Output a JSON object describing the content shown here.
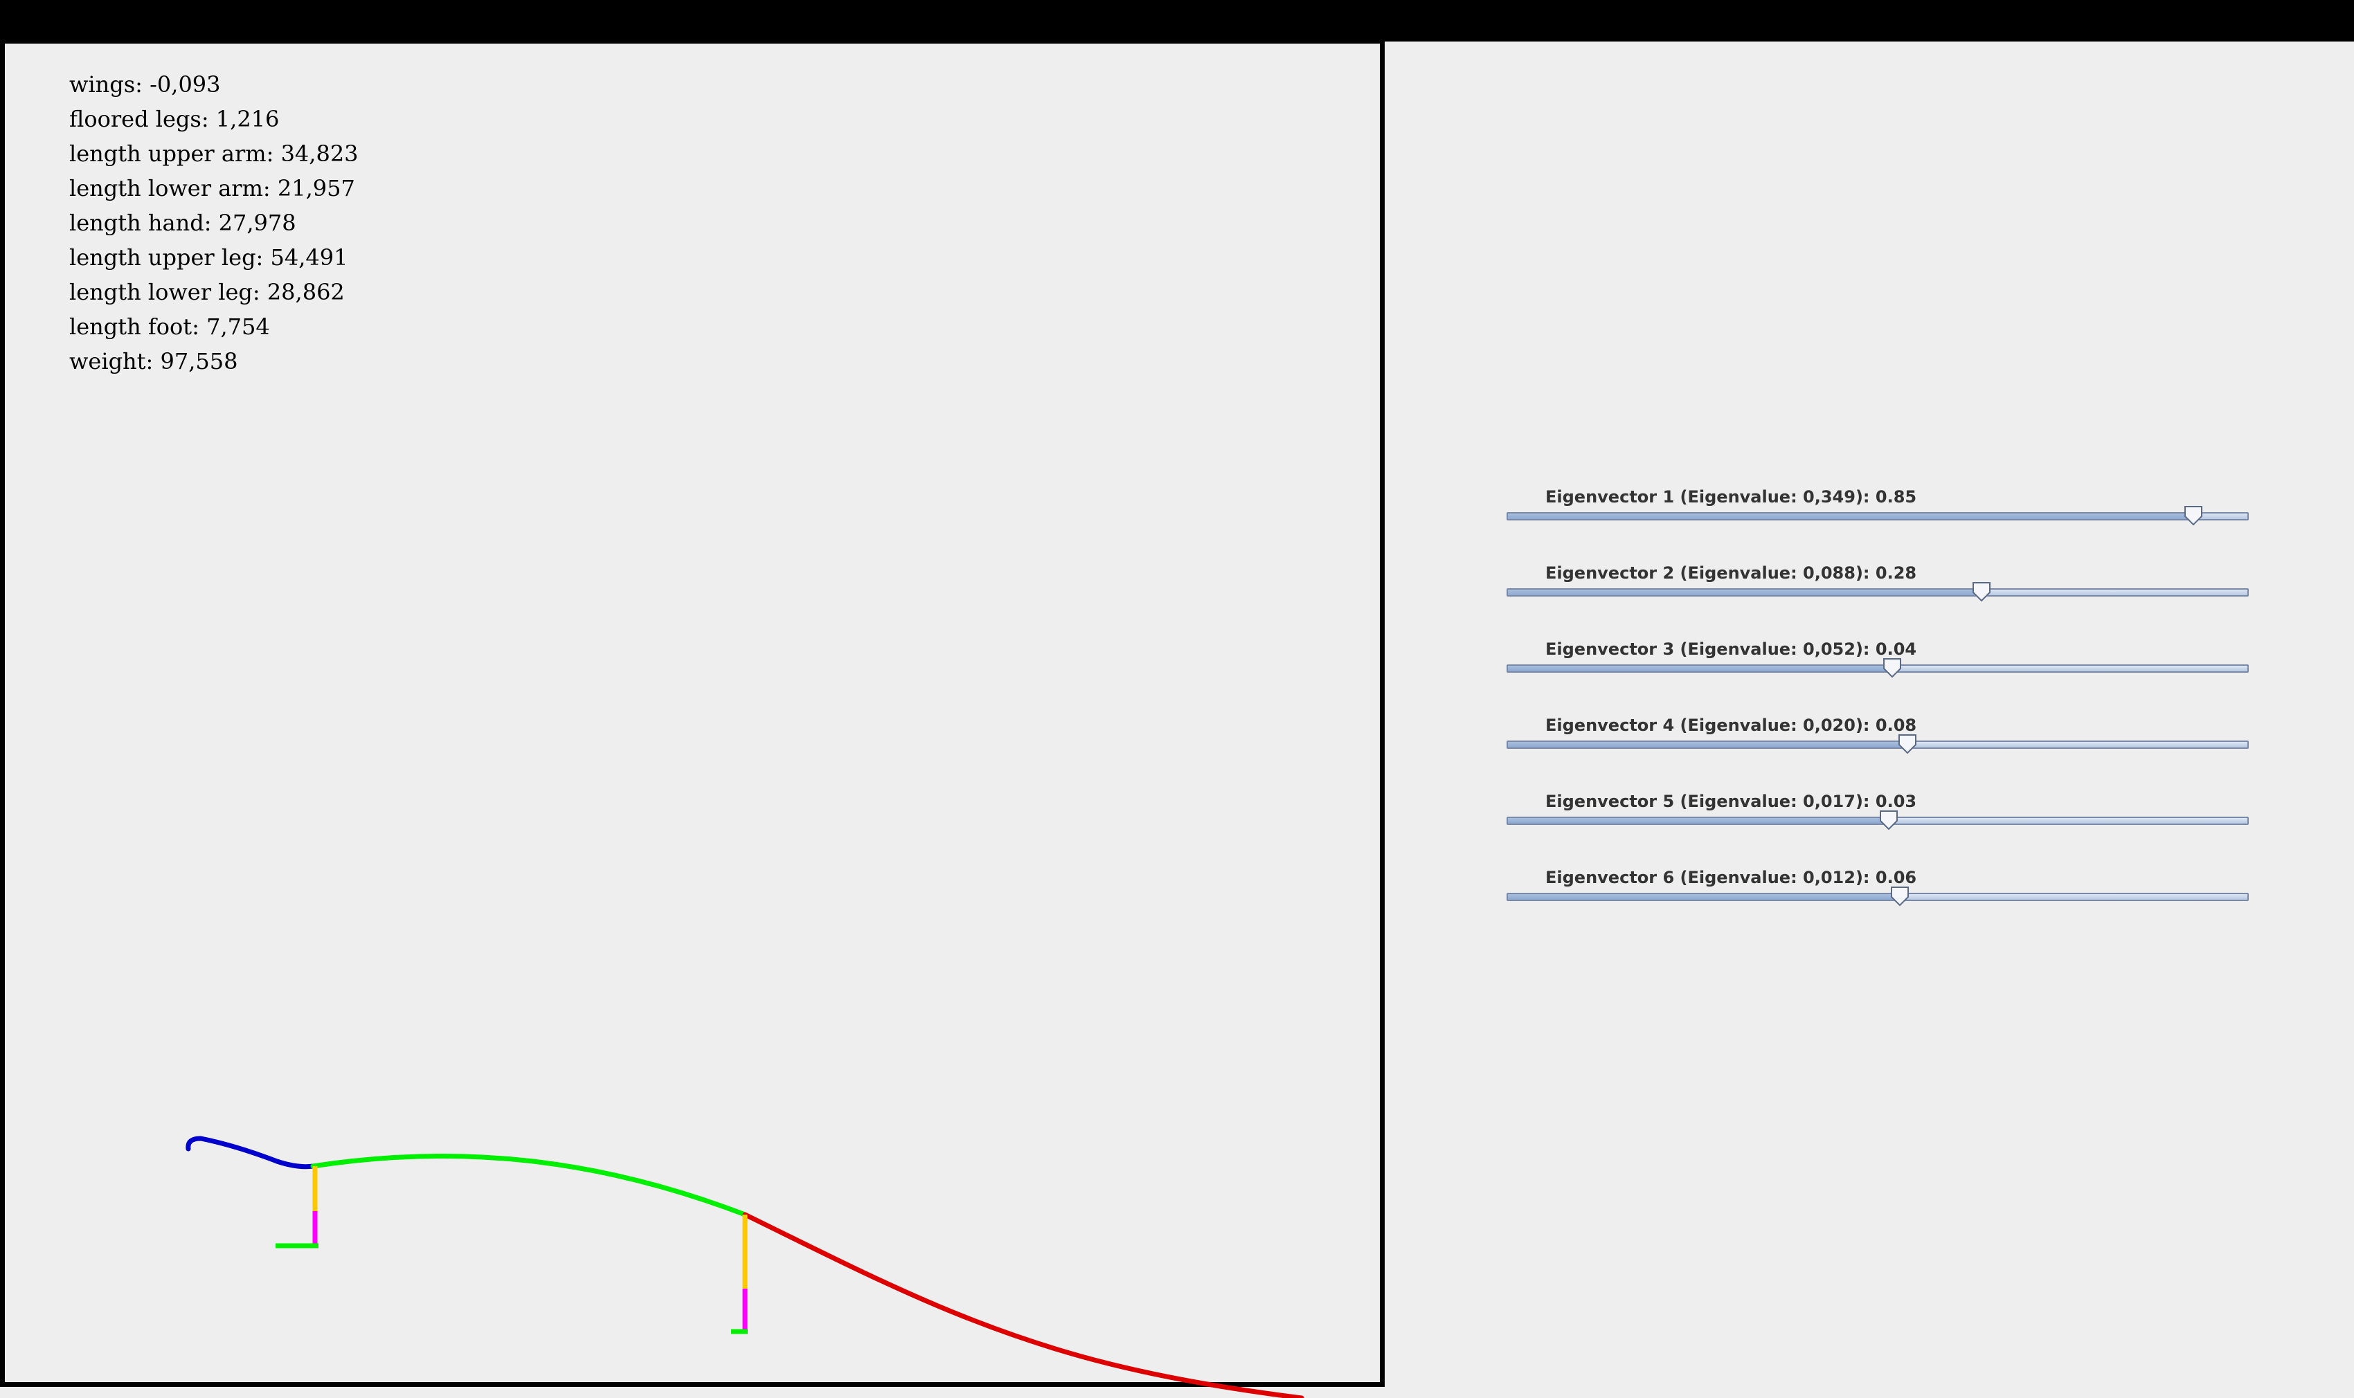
{
  "stats": [
    {
      "label": "wings: -0,093"
    },
    {
      "label": "floored legs: 1,216"
    },
    {
      "label": "length upper arm: 34,823"
    },
    {
      "label": "length lower arm: 21,957"
    },
    {
      "label": "length hand: 27,978"
    },
    {
      "label": "length upper leg: 54,491"
    },
    {
      "label": "length lower leg: 28,862"
    },
    {
      "label": "length foot: 7,754"
    },
    {
      "label": "weight: 97,558"
    }
  ],
  "sliders": [
    {
      "label": "Eigenvector 1 (Eigenvalue: 0,349): 0.85",
      "value": 0.85
    },
    {
      "label": "Eigenvector 2 (Eigenvalue: 0,088): 0.28",
      "value": 0.28
    },
    {
      "label": "Eigenvector 3 (Eigenvalue: 0,052): 0.04",
      "value": 0.04
    },
    {
      "label": "Eigenvector 4 (Eigenvalue: 0,020): 0.08",
      "value": 0.08
    },
    {
      "label": "Eigenvector 5 (Eigenvalue: 0,017): 0.03",
      "value": 0.03
    },
    {
      "label": "Eigenvector 6 (Eigenvalue: 0,012): 0.06",
      "value": 0.06
    }
  ],
  "slider_range": [
    -1,
    1
  ],
  "colors": {
    "neck": "#0000cc",
    "body": "#00ee00",
    "tail": "#dd0000",
    "upper_leg": "#ffc800",
    "lower_leg": "#ff00ff",
    "foot": "#00ee00"
  }
}
